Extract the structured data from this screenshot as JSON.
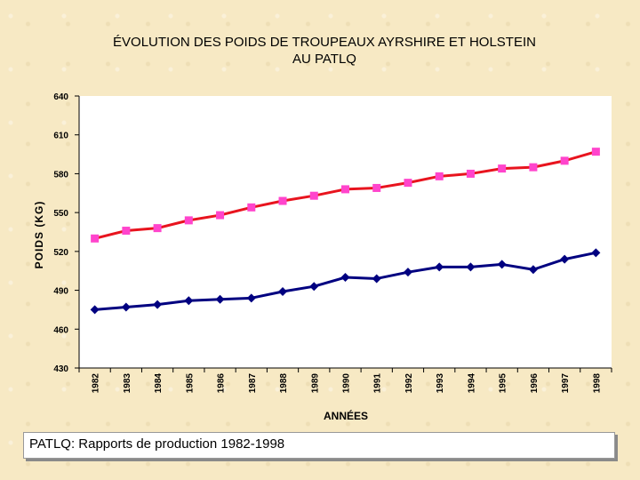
{
  "chart_data": {
    "type": "line",
    "title_lines": [
      "ÉVOLUTION DES POIDS DE TROUPEAUX AYRSHIRE ET HOLSTEIN",
      "AU PATLQ"
    ],
    "xlabel": "ANNÉES",
    "ylabel": "POIDS (KG)",
    "ylim": [
      430,
      640
    ],
    "yticks": [
      "640",
      "610",
      "580",
      "550",
      "520",
      "490",
      "460",
      "430"
    ],
    "ytick_values": [
      640,
      610,
      580,
      550,
      520,
      490,
      460,
      430
    ],
    "categories": [
      "1982",
      "1983",
      "1984",
      "1985",
      "1986",
      "1987",
      "1988",
      "1989",
      "1990",
      "1991",
      "1992",
      "1993",
      "1994",
      "1995",
      "1996",
      "1997",
      "1998"
    ],
    "grid": false,
    "legend": "none",
    "series": [
      {
        "color": "#ff44cc",
        "line_color": "#e8141e",
        "marker": "square",
        "values": [
          530,
          536,
          538,
          544,
          548,
          554,
          559,
          563,
          568,
          569,
          573,
          578,
          580,
          584,
          585,
          590,
          597
        ]
      },
      {
        "color": "#000080",
        "line_color": "#000080",
        "marker": "diamond",
        "values": [
          475,
          477,
          479,
          482,
          483,
          484,
          489,
          493,
          500,
          499,
          504,
          508,
          508,
          510,
          506,
          514,
          519
        ]
      }
    ]
  },
  "caption": "PATLQ:  Rapports de production 1982-1998"
}
